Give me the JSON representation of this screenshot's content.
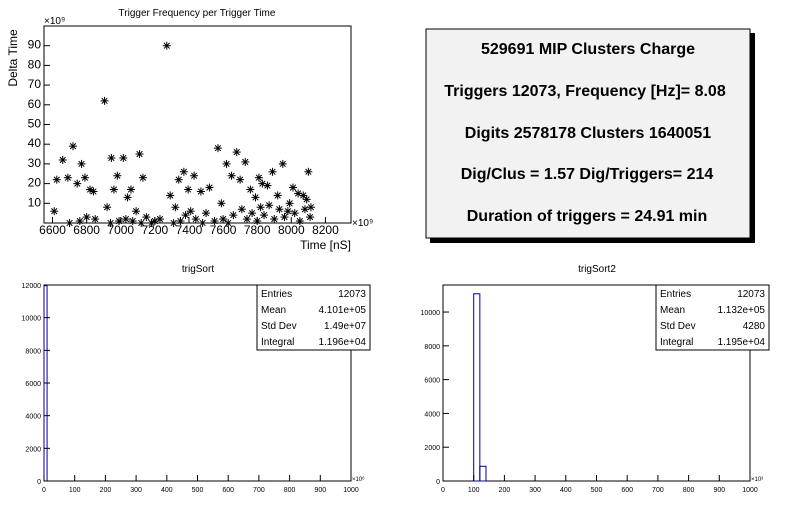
{
  "chart_data": [
    {
      "type": "scatter",
      "title": "Trigger Frequency per Trigger Time",
      "xlabel": "Time [nS]",
      "ylabel": "Delta Time",
      "x_exponent": "×10⁹",
      "y_exponent": "×10⁹",
      "xlim": [
        6550,
        8350
      ],
      "ylim": [
        0,
        100
      ],
      "xticks": [
        "6600",
        "6800",
        "7000",
        "7200",
        "7400",
        "7600",
        "7800",
        "8000",
        "8200"
      ],
      "yticks": [
        "10",
        "20",
        "30",
        "40",
        "50",
        "60",
        "70",
        "80",
        "90"
      ],
      "points": [
        [
          6610,
          6
        ],
        [
          6625,
          22
        ],
        [
          6660,
          32
        ],
        [
          6690,
          23
        ],
        [
          6720,
          39
        ],
        [
          6745,
          20
        ],
        [
          6770,
          30
        ],
        [
          6790,
          23
        ],
        [
          6800,
          3
        ],
        [
          6820,
          17
        ],
        [
          6840,
          16
        ],
        [
          6905,
          62
        ],
        [
          6920,
          8
        ],
        [
          6945,
          33
        ],
        [
          6960,
          17
        ],
        [
          6980,
          24
        ],
        [
          7015,
          33
        ],
        [
          7040,
          13
        ],
        [
          7060,
          17
        ],
        [
          7090,
          6
        ],
        [
          7110,
          35
        ],
        [
          7130,
          23
        ],
        [
          7180,
          0
        ],
        [
          7270,
          90
        ],
        [
          7290,
          14
        ],
        [
          7320,
          8
        ],
        [
          7340,
          22
        ],
        [
          7370,
          26
        ],
        [
          7395,
          17
        ],
        [
          7430,
          24
        ],
        [
          7470,
          16
        ],
        [
          7520,
          18
        ],
        [
          7570,
          38
        ],
        [
          7590,
          10
        ],
        [
          7620,
          30
        ],
        [
          7650,
          24
        ],
        [
          7680,
          36
        ],
        [
          7700,
          22
        ],
        [
          7730,
          31
        ],
        [
          7760,
          17
        ],
        [
          7790,
          13
        ],
        [
          7810,
          23
        ],
        [
          7830,
          20
        ],
        [
          7860,
          19
        ],
        [
          7890,
          26
        ],
        [
          7920,
          14
        ],
        [
          7950,
          30
        ],
        [
          7980,
          6
        ],
        [
          8010,
          18
        ],
        [
          8040,
          15
        ],
        [
          8070,
          14
        ],
        [
          8100,
          26
        ],
        [
          8115,
          8
        ],
        [
          6700,
          0
        ],
        [
          6760,
          1
        ],
        [
          6850,
          2
        ],
        [
          6940,
          0
        ],
        [
          6990,
          1
        ],
        [
          7030,
          2
        ],
        [
          7070,
          1
        ],
        [
          7120,
          0
        ],
        [
          7150,
          3
        ],
        [
          7200,
          1
        ],
        [
          7230,
          2
        ],
        [
          7310,
          0
        ],
        [
          7350,
          1
        ],
        [
          7380,
          4
        ],
        [
          7410,
          6
        ],
        [
          7440,
          2
        ],
        [
          7480,
          0
        ],
        [
          7500,
          5
        ],
        [
          7550,
          1
        ],
        [
          7600,
          2
        ],
        [
          7630,
          0
        ],
        [
          7660,
          4
        ],
        [
          7710,
          7
        ],
        [
          7740,
          2
        ],
        [
          7770,
          5
        ],
        [
          7800,
          1
        ],
        [
          7820,
          8
        ],
        [
          7840,
          4
        ],
        [
          7870,
          9
        ],
        [
          7900,
          2
        ],
        [
          7930,
          7
        ],
        [
          7960,
          3
        ],
        [
          7990,
          10
        ],
        [
          8020,
          5
        ],
        [
          8050,
          1
        ],
        [
          8080,
          7
        ],
        [
          8090,
          12
        ],
        [
          8110,
          3
        ]
      ]
    },
    {
      "type": "bar",
      "title": "trigSort",
      "x_exponent": "×10⁶",
      "xlim": [
        0,
        1000
      ],
      "ylim": [
        0,
        12000
      ],
      "xticks": [
        "0",
        "100",
        "200",
        "300",
        "400",
        "500",
        "600",
        "700",
        "800",
        "900",
        "1000"
      ],
      "yticks": [
        "0",
        "2000",
        "4000",
        "6000",
        "8000",
        "10000",
        "12000"
      ],
      "bins": [
        {
          "x0": 0,
          "x1": 10,
          "value": 11960
        }
      ],
      "stats": [
        {
          "label": "Entries",
          "value": "12073"
        },
        {
          "label": "Mean",
          "value": "4.101e+05"
        },
        {
          "label": "Std Dev",
          "value": "1.49e+07"
        },
        {
          "label": "Integral",
          "value": "1.196e+04"
        }
      ]
    },
    {
      "type": "bar",
      "title": "trigSort2",
      "x_exponent": "×10³",
      "xlim": [
        0,
        1000
      ],
      "ylim": [
        0,
        11600
      ],
      "xticks": [
        "0",
        "100",
        "200",
        "300",
        "400",
        "500",
        "600",
        "700",
        "800",
        "900",
        "1000"
      ],
      "yticks": [
        "0",
        "2000",
        "4000",
        "6000",
        "8000",
        "10000"
      ],
      "bins": [
        {
          "x0": 100,
          "x1": 120,
          "value": 11080
        },
        {
          "x0": 120,
          "x1": 140,
          "value": 870
        }
      ],
      "stats": [
        {
          "label": "Entries",
          "value": "12073"
        },
        {
          "label": "Mean",
          "value": "1.132e+05"
        },
        {
          "label": "Std Dev",
          "value": "4280"
        },
        {
          "label": "Integral",
          "value": "1.195e+04"
        }
      ]
    }
  ],
  "info": {
    "lines": [
      "529691 MIP Clusters Charge",
      "Triggers 12073, Frequency [Hz]= 8.08",
      "Digits 2578178 Clusters 1640051",
      "Dig/Clus = 1.57 Dig/Triggers= 214",
      "Duration of triggers = 24.91 min"
    ]
  },
  "colors": {
    "hist_line": "#000099",
    "info_bg": "#f2f2f2",
    "info_shadow": "#000000"
  }
}
